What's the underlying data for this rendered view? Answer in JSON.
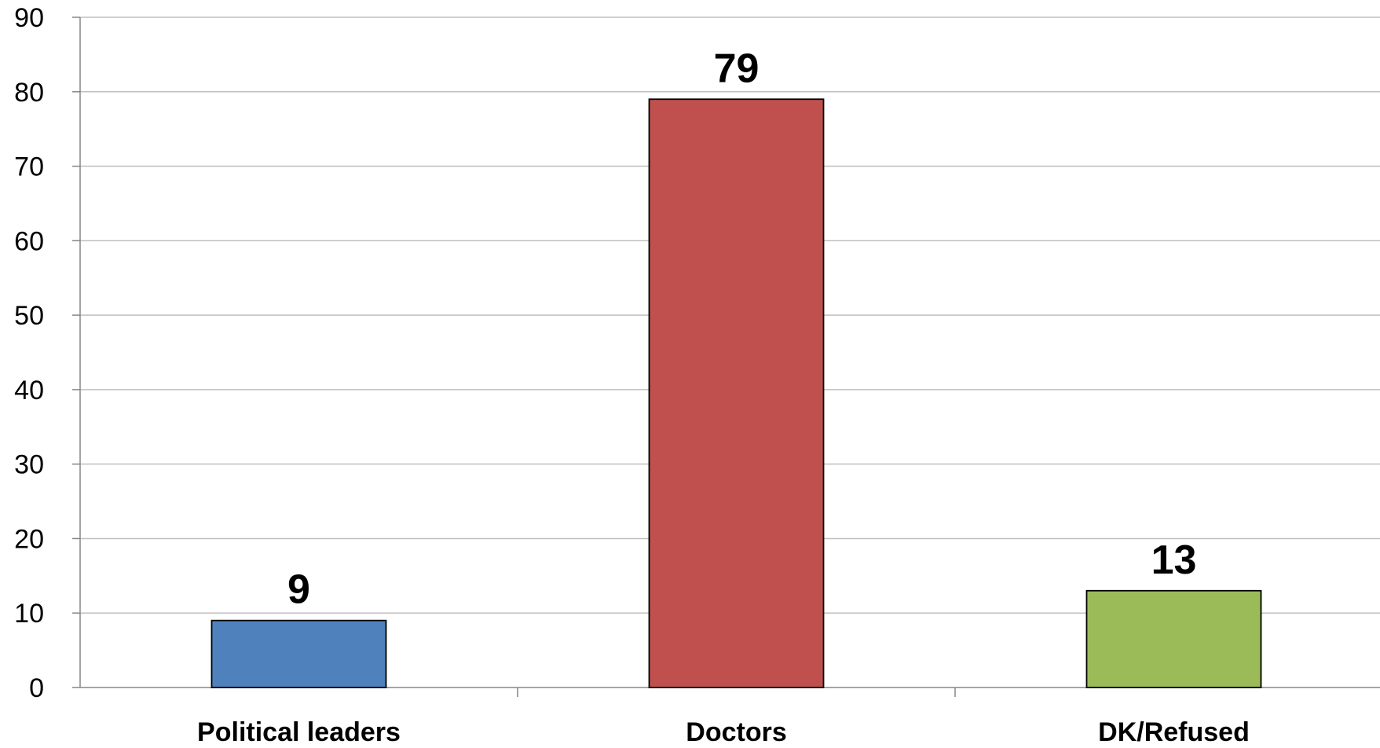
{
  "chart_data": {
    "type": "bar",
    "title": "",
    "xlabel": "",
    "ylabel": "",
    "categories": [
      "Political leaders",
      "Doctors",
      "DK/Refused"
    ],
    "values": [
      9,
      79,
      13
    ],
    "data_labels": [
      "9",
      "79",
      "13"
    ],
    "colors": [
      "#4f81bd",
      "#c0504d",
      "#9bbb59"
    ],
    "ylim": [
      0,
      90
    ],
    "yticks": [
      0,
      10,
      20,
      30,
      40,
      50,
      60,
      70,
      80,
      90
    ],
    "ytick_labels": [
      "0",
      "10",
      "20",
      "30",
      "40",
      "50",
      "60",
      "70",
      "80",
      "90"
    ],
    "grid": true,
    "legend": "none"
  }
}
